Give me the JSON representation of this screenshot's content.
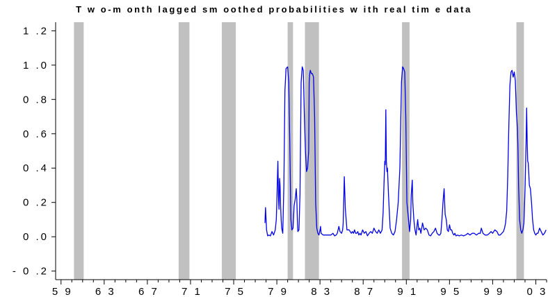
{
  "chart_data": {
    "type": "line",
    "title": "T w o-m onth lagged sm oothed probabilities w ith real tim e data",
    "xlabel": "",
    "ylabel": "",
    "xlim": [
      1958.5,
      2004.0
    ],
    "ylim": [
      -0.25,
      1.25
    ],
    "y_ticks": [
      -0.2,
      0.0,
      0.2,
      0.4,
      0.6,
      0.8,
      1.0,
      1.2
    ],
    "y_tick_labels": [
      "- 0 .2",
      "0 .0",
      "0 .2",
      "0 .4",
      "0 .6",
      "0 .8",
      "1 .0",
      "1 .2"
    ],
    "x_tick_labels": [
      {
        "value": 1959,
        "label": "5 9"
      },
      {
        "value": 1963,
        "label": "6 3"
      },
      {
        "value": 1967,
        "label": "6 7"
      },
      {
        "value": 1971,
        "label": "7 1"
      },
      {
        "value": 1975,
        "label": "7 5"
      },
      {
        "value": 1979,
        "label": "7 9"
      },
      {
        "value": 1983,
        "label": "8 3"
      },
      {
        "value": 1987,
        "label": "8 7"
      },
      {
        "value": 1991,
        "label": "9 1"
      },
      {
        "value": 1995,
        "label": "9 5"
      },
      {
        "value": 1999,
        "label": "9 9"
      },
      {
        "value": 2003,
        "label": "0 3"
      }
    ],
    "grid": false,
    "legend": "none",
    "series_color": "#0000e6",
    "shade_color": "#c0c0c0",
    "shaded_periods": [
      [
        1960.2,
        1961.1
      ],
      [
        1969.9,
        1970.9
      ],
      [
        1973.9,
        1975.2
      ],
      [
        1980.0,
        1980.5
      ],
      [
        1981.6,
        1982.9
      ],
      [
        1990.6,
        1991.3
      ],
      [
        2001.2,
        2001.9
      ]
    ],
    "series": [
      {
        "x": [
          1977.9,
          1977.95,
          1978.05,
          1978.15,
          1978.25,
          1978.4,
          1978.55,
          1978.7,
          1978.85,
          1978.95,
          1979.0,
          1979.05,
          1979.1,
          1979.15,
          1979.2,
          1979.25,
          1979.3,
          1979.35,
          1979.4,
          1979.45,
          1979.55,
          1979.65,
          1979.75,
          1979.85,
          1980.0,
          1980.1,
          1980.2,
          1980.3,
          1980.4,
          1980.5,
          1980.6,
          1980.7,
          1980.8,
          1980.85,
          1980.9,
          1980.95,
          1981.05,
          1981.15,
          1981.25,
          1981.35,
          1981.45,
          1981.55,
          1981.65,
          1981.75,
          1981.85,
          1981.95,
          1982.0,
          1982.05,
          1982.1,
          1982.15,
          1982.2,
          1982.3,
          1982.4,
          1982.5,
          1982.6,
          1982.7,
          1982.8,
          1982.9,
          1983.0,
          1983.05,
          1983.1,
          1983.3,
          1983.6,
          1984.0,
          1984.2,
          1984.35,
          1984.5,
          1984.6,
          1984.75,
          1984.85,
          1985.0,
          1985.1,
          1985.15,
          1985.25,
          1985.35,
          1985.5,
          1985.7,
          1985.9,
          1986.0,
          1986.1,
          1986.2,
          1986.3,
          1986.4,
          1986.5,
          1986.6,
          1986.7,
          1986.8,
          1986.95,
          1987.1,
          1987.25,
          1987.4,
          1987.55,
          1987.7,
          1987.85,
          1988.0,
          1988.15,
          1988.3,
          1988.45,
          1988.6,
          1988.75,
          1988.85,
          1988.95,
          1989.0,
          1989.05,
          1989.1,
          1989.15,
          1989.2,
          1989.25,
          1989.35,
          1989.5,
          1989.65,
          1989.8,
          1989.95,
          1990.1,
          1990.25,
          1990.4,
          1990.55,
          1990.65,
          1990.75,
          1990.85,
          1990.95,
          1991.05,
          1991.2,
          1991.3,
          1991.4,
          1991.45,
          1991.55,
          1991.6,
          1991.7,
          1991.8,
          1991.9,
          1992.05,
          1992.15,
          1992.25,
          1992.35,
          1992.5,
          1992.65,
          1992.8,
          1992.95,
          1993.1,
          1993.25,
          1993.4,
          1993.55,
          1993.7,
          1993.85,
          1994.0,
          1994.1,
          1994.2,
          1994.3,
          1994.4,
          1994.5,
          1994.6,
          1994.7,
          1994.8,
          1994.9,
          1995.0,
          1995.1,
          1995.2,
          1995.3,
          1995.4,
          1995.5,
          1995.6,
          1995.75,
          1995.9,
          1996.1,
          1996.3,
          1996.5,
          1996.7,
          1996.9,
          1997.1,
          1997.3,
          1997.5,
          1997.7,
          1997.85,
          1997.95,
          1998.1,
          1998.3,
          1998.5,
          1998.7,
          1998.85,
          1999.0,
          1999.2,
          1999.4,
          1999.55,
          1999.7,
          1999.85,
          2000.0,
          2000.1,
          2000.2,
          2000.3,
          2000.4,
          2000.5,
          2000.6,
          2000.7,
          2000.8,
          2000.9,
          2001.0,
          2001.1,
          2001.2,
          2001.3,
          2001.35,
          2001.4,
          2001.5,
          2001.6,
          2001.7,
          2001.8,
          2001.9,
          2002.0,
          2002.1,
          2002.15,
          2002.2,
          2002.25,
          2002.3,
          2002.4,
          2002.5,
          2002.6,
          2002.7,
          2002.8,
          2002.9,
          2003.0,
          2003.1,
          2003.2,
          2003.35,
          2003.5,
          2003.65,
          2003.8,
          2003.95
        ],
        "y": [
          0.08,
          0.17,
          0.04,
          0.005,
          0.01,
          0.005,
          0.03,
          0.01,
          0.04,
          0.1,
          0.2,
          0.34,
          0.44,
          0.24,
          0.16,
          0.34,
          0.3,
          0.18,
          0.1,
          0.05,
          0.02,
          0.3,
          0.85,
          0.98,
          0.99,
          0.9,
          0.55,
          0.1,
          0.04,
          0.05,
          0.18,
          0.22,
          0.28,
          0.22,
          0.1,
          0.03,
          0.04,
          0.25,
          0.9,
          0.99,
          0.97,
          0.7,
          0.5,
          0.38,
          0.4,
          0.5,
          0.9,
          0.95,
          0.97,
          0.96,
          0.95,
          0.95,
          0.93,
          0.7,
          0.2,
          0.05,
          0.02,
          0.01,
          0.04,
          0.06,
          0.02,
          0.01,
          0.01,
          0.01,
          0.02,
          0.005,
          0.01,
          0.02,
          0.06,
          0.03,
          0.02,
          0.04,
          0.08,
          0.35,
          0.16,
          0.04,
          0.04,
          0.02,
          0.03,
          0.02,
          0.04,
          0.02,
          0.02,
          0.03,
          0.01,
          0.02,
          0.01,
          0.04,
          0.02,
          0.03,
          0.005,
          0.02,
          0.03,
          0.02,
          0.05,
          0.03,
          0.02,
          0.04,
          0.02,
          0.04,
          0.14,
          0.35,
          0.44,
          0.42,
          0.74,
          0.44,
          0.38,
          0.4,
          0.24,
          0.05,
          0.02,
          0.01,
          0.03,
          0.1,
          0.2,
          0.4,
          0.9,
          0.99,
          0.98,
          0.96,
          0.7,
          0.2,
          0.1,
          0.03,
          0.1,
          0.24,
          0.33,
          0.2,
          0.1,
          0.04,
          0.01,
          0.1,
          0.04,
          0.05,
          0.02,
          0.08,
          0.04,
          0.05,
          0.04,
          0.01,
          0.005,
          0.02,
          0.03,
          0.05,
          0.02,
          0.01,
          0.01,
          0.02,
          0.1,
          0.2,
          0.28,
          0.13,
          0.1,
          0.04,
          0.03,
          0.07,
          0.04,
          0.04,
          0.02,
          0.01,
          0.02,
          0.005,
          0.01,
          0.005,
          0.01,
          0.005,
          0.01,
          0.02,
          0.01,
          0.02,
          0.02,
          0.01,
          0.02,
          0.02,
          0.05,
          0.02,
          0.01,
          0.01,
          0.02,
          0.03,
          0.02,
          0.04,
          0.03,
          0.01,
          0.01,
          0.02,
          0.03,
          0.05,
          0.08,
          0.15,
          0.35,
          0.65,
          0.88,
          0.96,
          0.97,
          0.93,
          0.96,
          0.91,
          0.72,
          0.63,
          0.5,
          0.3,
          0.1,
          0.04,
          0.02,
          0.04,
          0.08,
          0.28,
          0.55,
          0.75,
          0.55,
          0.44,
          0.43,
          0.3,
          0.28,
          0.2,
          0.1,
          0.04,
          0.02,
          0.01,
          0.02,
          0.02,
          0.05,
          0.03,
          0.01,
          0.02,
          0.04
        ]
      }
    ]
  }
}
